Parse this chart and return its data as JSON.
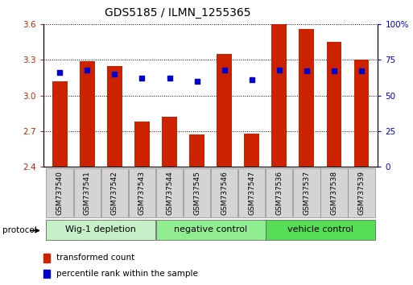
{
  "title": "GDS5185 / ILMN_1255365",
  "samples": [
    "GSM737540",
    "GSM737541",
    "GSM737542",
    "GSM737543",
    "GSM737544",
    "GSM737545",
    "GSM737546",
    "GSM737547",
    "GSM737536",
    "GSM737537",
    "GSM737538",
    "GSM737539"
  ],
  "transformed_count": [
    3.12,
    3.29,
    3.25,
    2.78,
    2.82,
    2.67,
    3.35,
    2.68,
    3.6,
    3.56,
    3.45,
    3.3
  ],
  "percentile_rank": [
    66,
    68,
    65,
    62,
    62,
    60,
    68,
    61,
    68,
    67,
    67,
    67
  ],
  "ylim_left": [
    2.4,
    3.6
  ],
  "ylim_right": [
    0,
    100
  ],
  "yticks_left": [
    2.4,
    2.7,
    3.0,
    3.3,
    3.6
  ],
  "yticks_right": [
    0,
    25,
    50,
    75,
    100
  ],
  "ytick_labels_right": [
    "0",
    "25",
    "50",
    "75",
    "100%"
  ],
  "bar_color": "#cc2200",
  "dot_color": "#0000cc",
  "groups": [
    {
      "label": "Wig-1 depletion",
      "start": 0,
      "end": 4,
      "color": "#c8f0c8"
    },
    {
      "label": "negative control",
      "start": 4,
      "end": 8,
      "color": "#90ee90"
    },
    {
      "label": "vehicle control",
      "start": 8,
      "end": 12,
      "color": "#55dd55"
    }
  ],
  "protocol_label": "protocol",
  "legend_items": [
    {
      "label": "transformed count",
      "color": "#cc2200"
    },
    {
      "label": "percentile rank within the sample",
      "color": "#0000cc"
    }
  ],
  "title_fontsize": 10,
  "tick_fontsize": 7.5,
  "label_fontsize": 6.5,
  "group_fontsize": 8,
  "bar_width": 0.55
}
